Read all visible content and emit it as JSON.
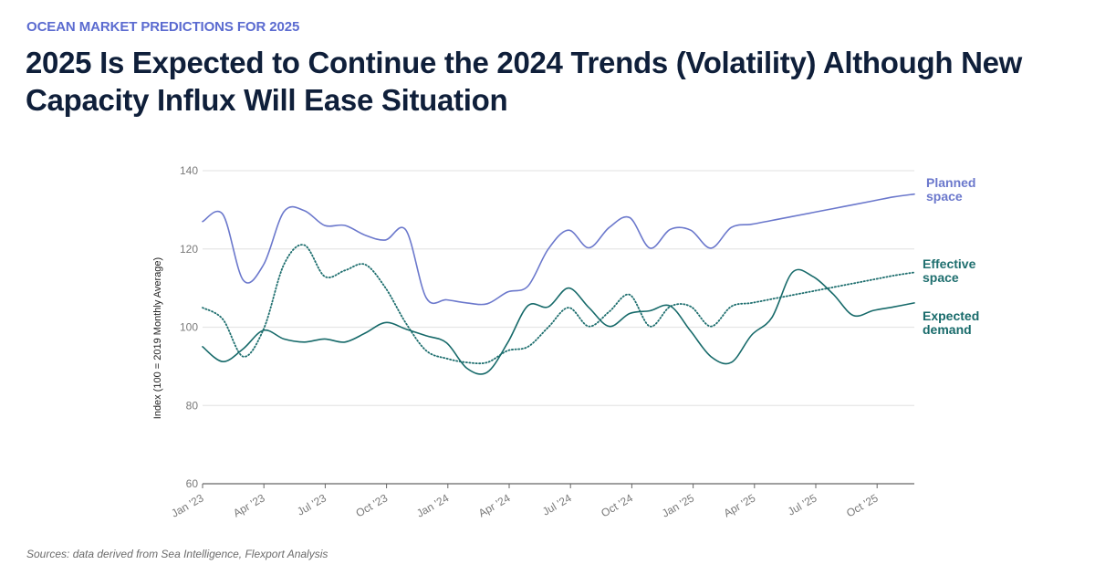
{
  "header": {
    "kicker": "OCEAN MARKET PREDICTIONS FOR 2025",
    "title": "2025 Is Expected to Continue the 2024 Trends (Volatility) Although New Capacity Influx Will Ease Situation"
  },
  "footer": {
    "source": "Sources: data derived from Sea Intelligence, Flexport Analysis"
  },
  "colors": {
    "kicker": "#5b6bd0",
    "title": "#0f1f3a",
    "planned": "#6b78cc",
    "effective": "#1f6f6f",
    "demand": "#176a6a"
  },
  "chart_data": {
    "type": "line",
    "title": "",
    "xlabel": "",
    "ylabel": "Index (100 = 2019 Monthly Average)",
    "ylim": [
      60,
      140
    ],
    "yticks": [
      60,
      80,
      100,
      120,
      140
    ],
    "grid": true,
    "x_start": "Jan '23",
    "x_end": "Dec '25",
    "xtick_labels": [
      "Jan '23",
      "Apr '23",
      "Jul '23",
      "Oct '23",
      "Jan '24",
      "Apr '24",
      "Jul '24",
      "Oct '24",
      "Jan '25",
      "Apr '25",
      "Jul '25",
      "Oct '25"
    ],
    "xtick_month_index": [
      0,
      3,
      6,
      9,
      12,
      15,
      18,
      21,
      24,
      27,
      30,
      33
    ],
    "legend_placement": "right (inline labels at line ends)",
    "series": [
      {
        "name": "Planned space",
        "legend_label_lines": [
          "Planned",
          "space"
        ],
        "style": "solid",
        "color": "#6b78cc",
        "values": [
          127,
          128.8,
          112,
          116,
          129.5,
          129.8,
          126,
          126,
          123.5,
          122.3,
          124.8,
          107.5,
          107,
          106.2,
          106,
          109,
          110.5,
          120,
          124.8,
          120.3,
          125.5,
          128,
          120.2,
          125,
          124.8,
          120.2,
          125.5,
          126.3,
          127.3,
          128.3,
          129.3,
          130.3,
          131.3,
          132.3,
          133.3,
          134
        ]
      },
      {
        "name": "Effective space",
        "legend_label_lines": [
          "Effective",
          "space"
        ],
        "style": "dotted",
        "color": "#1f6f6f",
        "values": [
          105,
          102,
          92.5,
          99.5,
          116,
          121,
          113,
          114.5,
          116,
          110,
          101,
          94,
          92,
          91,
          91,
          94,
          95,
          100,
          105,
          100.2,
          104,
          108.3,
          100.2,
          105.3,
          105.3,
          100.2,
          105.3,
          106.2,
          107.2,
          108.2,
          109.2,
          110.2,
          111.2,
          112.2,
          113.2,
          114
        ]
      },
      {
        "name": "Expected demand",
        "legend_label_lines": [
          "Expected",
          "demand"
        ],
        "style": "solid",
        "color": "#176a6a",
        "values": [
          95,
          91.2,
          94.5,
          99.2,
          97,
          96.2,
          97,
          96.2,
          98.5,
          101.2,
          99.5,
          97.8,
          96,
          89.5,
          88.5,
          96,
          105.5,
          105.2,
          110,
          105,
          100.2,
          103.5,
          104.2,
          105.4,
          99,
          92.5,
          91,
          98,
          102.5,
          114,
          113,
          108.5,
          103,
          104.3,
          105.2,
          106.2
        ]
      }
    ]
  }
}
